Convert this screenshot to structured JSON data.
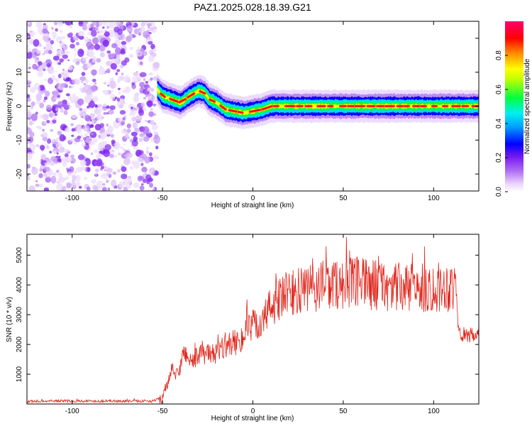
{
  "page_title": "PAZ1.2025.028.18.39.G21",
  "chart_data": [
    {
      "type": "heatmap",
      "title": "PAZ1.2025.028.18.39.G21",
      "xlabel": "Height of straight line (km)",
      "ylabel": "Frequency (Hz)",
      "xlim": [
        -125,
        125
      ],
      "ylim": [
        -25,
        25
      ],
      "xticks": [
        -100,
        -50,
        0,
        50,
        100
      ],
      "yticks": [
        -20,
        -10,
        0,
        10,
        20
      ],
      "grid": false,
      "noise_region": {
        "x_start": -125,
        "x_end": -53
      },
      "ridge": {
        "x": [
          -53,
          -50,
          -45,
          -40,
          -35,
          -30,
          -27,
          -24,
          -20,
          -15,
          -10,
          -5,
          0,
          5,
          10,
          20,
          30,
          40,
          50,
          60,
          70,
          80,
          90,
          100,
          110,
          120,
          125
        ],
        "y": [
          5,
          3,
          2,
          1,
          3,
          4.5,
          4,
          2,
          1,
          -1,
          -1.5,
          -2,
          -1.5,
          -1,
          0,
          0,
          0,
          0,
          0,
          0,
          0,
          0,
          0,
          0,
          0,
          0,
          0
        ]
      },
      "colorbar": {
        "label": "Normalized spectral amplitude",
        "range": [
          0.0,
          1.0
        ],
        "ticks": [
          0.0,
          0.2,
          0.4,
          0.6,
          0.8
        ],
        "colors": [
          "#ffffff",
          "#d8b0f8",
          "#7a1cf0",
          "#0000ff",
          "#00e0ff",
          "#00ff40",
          "#ffff00",
          "#ff8000",
          "#ff0000",
          "#ff0060"
        ]
      }
    },
    {
      "type": "line",
      "xlabel": "Height of straight line (km)",
      "ylabel": "SNR (10 * v/v)",
      "xlim": [
        -125,
        125
      ],
      "ylim": [
        0,
        5700
      ],
      "xticks": [
        -100,
        -50,
        0,
        50,
        100
      ],
      "yticks": [
        1000,
        2000,
        3000,
        4000,
        5000
      ],
      "grid": false,
      "color": "#e0251b",
      "series": [
        {
          "x": [
            -125,
            -110,
            -90,
            -70,
            -55,
            -50,
            -47,
            -45,
            -42,
            -40,
            -38,
            -35,
            -33,
            -30,
            -25,
            -20,
            -15,
            -10,
            -5,
            0,
            5,
            10,
            15,
            20,
            30,
            40,
            50,
            60,
            70,
            80,
            90,
            100,
            108,
            112,
            114,
            118,
            125
          ],
          "y": [
            90,
            100,
            100,
            95,
            100,
            220,
            700,
            1100,
            1000,
            1250,
            1800,
            1500,
            1400,
            1700,
            1650,
            1700,
            2000,
            2050,
            2300,
            2600,
            2700,
            3300,
            3500,
            3700,
            3800,
            4000,
            4050,
            4050,
            4000,
            3900,
            3850,
            3900,
            3950,
            4000,
            2400,
            2300,
            2300
          ]
        }
      ]
    }
  ]
}
